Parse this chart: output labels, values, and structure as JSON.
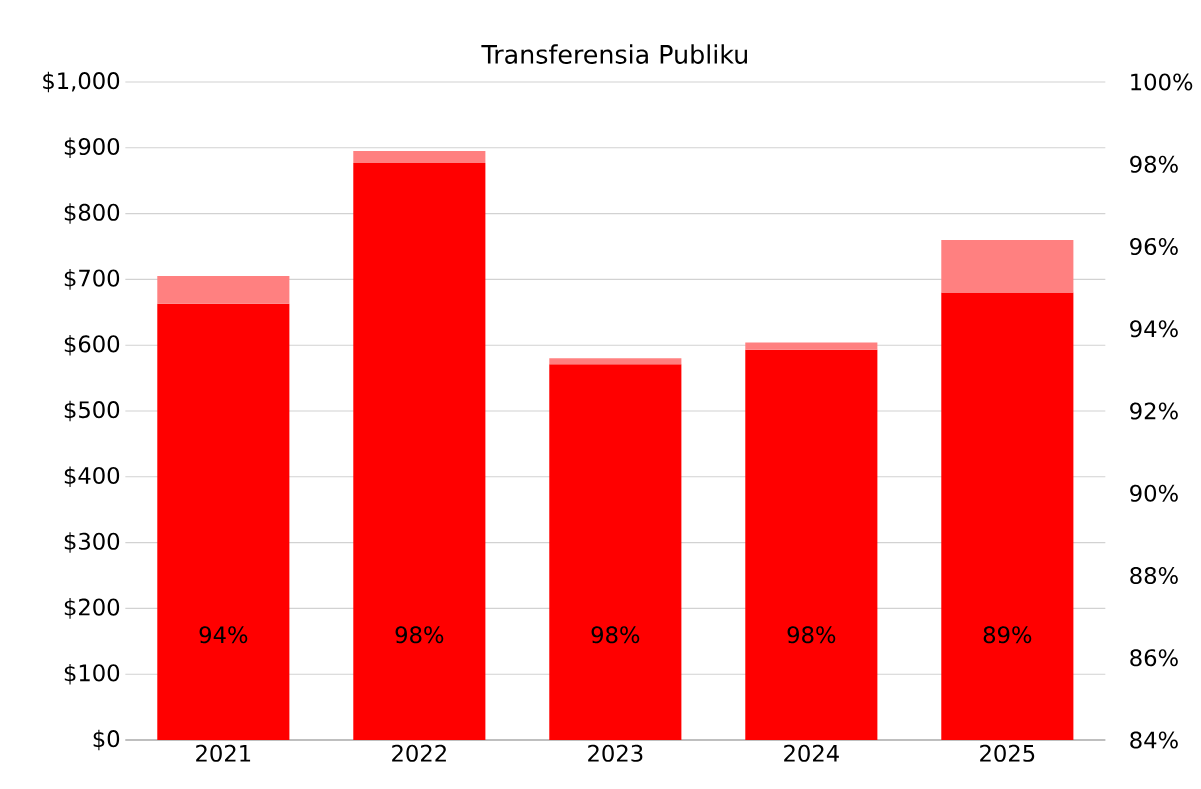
{
  "chart_data": {
    "type": "bar",
    "title": "Transferensia Publiku",
    "categories": [
      "2021",
      "2022",
      "2023",
      "2024",
      "2025"
    ],
    "stacked": true,
    "series": [
      {
        "color": "#ff0000",
        "values": [
          663,
          877,
          571,
          593,
          680
        ]
      },
      {
        "color": "#ff8080",
        "values": [
          42,
          18,
          9,
          11,
          80
        ]
      }
    ],
    "annotations": [
      "94%",
      "98%",
      "98%",
      "98%",
      "89%"
    ],
    "ylim": [
      0,
      1000
    ],
    "yticks": [
      {
        "value": 0,
        "label": "$0"
      },
      {
        "value": 100,
        "label": "$100"
      },
      {
        "value": 200,
        "label": "$200"
      },
      {
        "value": 300,
        "label": "$300"
      },
      {
        "value": 400,
        "label": "$400"
      },
      {
        "value": 500,
        "label": "$500"
      },
      {
        "value": 600,
        "label": "$600"
      },
      {
        "value": 700,
        "label": "$700"
      },
      {
        "value": 800,
        "label": "$800"
      },
      {
        "value": 900,
        "label": "$900"
      },
      {
        "value": 1000,
        "label": "$1,000"
      }
    ],
    "y2lim": [
      84,
      100
    ],
    "y2ticks": [
      {
        "value": 84,
        "label": "84%"
      },
      {
        "value": 86,
        "label": "86%"
      },
      {
        "value": 88,
        "label": "88%"
      },
      {
        "value": 90,
        "label": "90%"
      },
      {
        "value": 92,
        "label": "92%"
      },
      {
        "value": 94,
        "label": "94%"
      },
      {
        "value": 96,
        "label": "96%"
      },
      {
        "value": 98,
        "label": "98%"
      },
      {
        "value": 100,
        "label": "100%"
      }
    ],
    "grid": "y"
  }
}
